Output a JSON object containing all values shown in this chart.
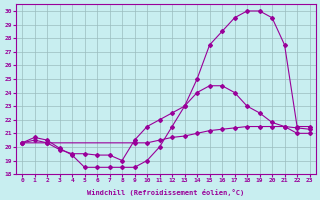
{
  "xlabel": "Windchill (Refroidissement éolien,°C)",
  "bg_color": "#c8eef0",
  "line_color": "#990099",
  "xlim": [
    -0.5,
    23.5
  ],
  "ylim": [
    18,
    30.5
  ],
  "yticks": [
    18,
    19,
    20,
    21,
    22,
    23,
    24,
    25,
    26,
    27,
    28,
    29,
    30
  ],
  "xticks": [
    0,
    1,
    2,
    3,
    4,
    5,
    6,
    7,
    8,
    9,
    10,
    11,
    12,
    13,
    14,
    15,
    16,
    17,
    18,
    19,
    20,
    21,
    22,
    23
  ],
  "line1_x": [
    0,
    1,
    2,
    3,
    4,
    5,
    6,
    7,
    8,
    9,
    10,
    11,
    12,
    13,
    14,
    15,
    16,
    17,
    18,
    19,
    20,
    21,
    22,
    23
  ],
  "line1_y": [
    20.3,
    20.7,
    20.5,
    19.9,
    19.4,
    18.5,
    18.5,
    18.5,
    18.5,
    18.5,
    19.0,
    20.0,
    21.5,
    23.0,
    25.0,
    27.5,
    28.5,
    29.5,
    30.0,
    30.0,
    29.5,
    27.5,
    21.5,
    21.5
  ],
  "line2_x": [
    0,
    1,
    2,
    3,
    4,
    5,
    6,
    7,
    8,
    9,
    10,
    11,
    12,
    13,
    14,
    15,
    16,
    17,
    18,
    19,
    20,
    21,
    22,
    23
  ],
  "line2_y": [
    20.3,
    20.5,
    20.3,
    19.8,
    19.5,
    19.5,
    19.4,
    19.4,
    19.0,
    20.5,
    21.5,
    22.0,
    22.5,
    23.0,
    24.0,
    24.5,
    24.5,
    24.0,
    23.0,
    22.5,
    21.8,
    21.5,
    21.0,
    21.0
  ],
  "line3_x": [
    0,
    2,
    9,
    10,
    11,
    12,
    13,
    14,
    15,
    16,
    17,
    18,
    19,
    20,
    21,
    22,
    23
  ],
  "line3_y": [
    20.3,
    20.3,
    20.3,
    20.3,
    20.5,
    20.7,
    20.8,
    21.0,
    21.2,
    21.3,
    21.4,
    21.5,
    21.5,
    21.5,
    21.5,
    21.4,
    21.3
  ]
}
